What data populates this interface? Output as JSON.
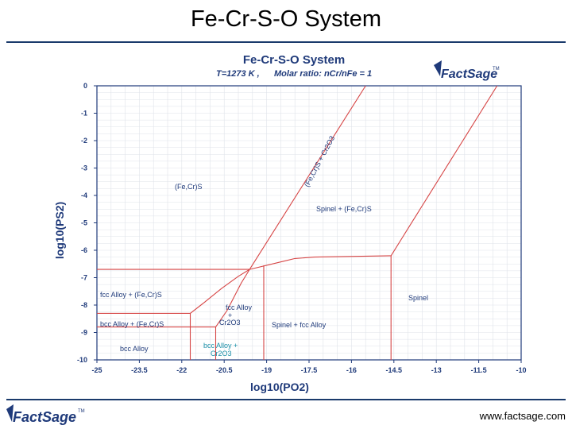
{
  "slide": {
    "title": "Fe-Cr-S-O System",
    "footer_url": "www.factsage.com",
    "brand_logo_text": "FactSage",
    "brand_mark": "TM"
  },
  "chart_data": {
    "type": "phase-diagram",
    "title": "Fe-Cr-S-O System",
    "subtitle_temperature": "T=1273 K ,",
    "subtitle_ratio": "Molar ratio:  nCr/nFe = 1",
    "xlabel": "log10(PO2)",
    "ylabel": "log10(PS2)",
    "xlim": [
      -25,
      -10
    ],
    "ylim": [
      -10,
      0
    ],
    "xticks": [
      "-25",
      "-23.5",
      "-22",
      "-20.5",
      "-19",
      "-17.5",
      "-16",
      "-14.5",
      "-13",
      "-11.5",
      "-10"
    ],
    "yticks": [
      "0",
      "-1",
      "-2",
      "-3",
      "-4",
      "-5",
      "-6",
      "-7",
      "-8",
      "-9",
      "-10"
    ],
    "grid": true,
    "line_color": "#d64545",
    "boundaries": [
      {
        "points": [
          [
            -25,
            -6.7
          ],
          [
            -19.6,
            -6.7
          ]
        ]
      },
      {
        "points": [
          [
            -25,
            -8.3
          ],
          [
            -21.7,
            -8.3
          ]
        ]
      },
      {
        "points": [
          [
            -25,
            -8.8
          ],
          [
            -20.8,
            -8.8
          ]
        ]
      },
      {
        "points": [
          [
            -21.7,
            -10
          ],
          [
            -21.7,
            -8.3
          ]
        ]
      },
      {
        "points": [
          [
            -21.7,
            -8.3
          ],
          [
            -21.2,
            -7.9
          ],
          [
            -20.6,
            -7.4
          ],
          [
            -20.0,
            -6.95
          ],
          [
            -19.6,
            -6.7
          ]
        ]
      },
      {
        "points": [
          [
            -20.8,
            -10
          ],
          [
            -20.8,
            -8.8
          ]
        ]
      },
      {
        "points": [
          [
            -20.8,
            -8.8
          ],
          [
            -20.4,
            -8.2
          ],
          [
            -19.9,
            -7.2
          ],
          [
            -19.6,
            -6.7
          ]
        ]
      },
      {
        "points": [
          [
            -19.6,
            -6.7
          ],
          [
            -18.4,
            -6.4
          ],
          [
            -18.0,
            -6.3
          ],
          [
            -17.3,
            -6.25
          ],
          [
            -14.6,
            -6.2
          ]
        ]
      },
      {
        "points": [
          [
            -19.1,
            -10
          ],
          [
            -19.1,
            -6.55
          ]
        ]
      },
      {
        "points": [
          [
            -14.6,
            -10
          ],
          [
            -14.6,
            -6.2
          ]
        ]
      },
      {
        "points": [
          [
            -19.6,
            -6.7
          ],
          [
            -15.5,
            0
          ]
        ]
      },
      {
        "points": [
          [
            -14.6,
            -6.2
          ],
          [
            -10.85,
            0
          ]
        ]
      }
    ],
    "regions": [
      {
        "label": "(Fe,Cr)S"
      },
      {
        "label": "Spinel + (Fe,Cr)S"
      },
      {
        "label": "Spinel"
      },
      {
        "label": "fcc Alloy + (Fe,Cr)S"
      },
      {
        "label": "bcc Alloy + (Fe,Cr)S"
      },
      {
        "label": "bcc Alloy"
      },
      {
        "label": "fcc Alloy"
      },
      {
        "label": "+"
      },
      {
        "label": "Cr2O3"
      },
      {
        "label": "Spinel + fcc Alloy"
      },
      {
        "label": "(Fe,Cr)S + Cr2O3"
      }
    ],
    "annotations": [
      {
        "line1": "bcc Alloy +",
        "line2": "Cr2O3"
      }
    ]
  }
}
